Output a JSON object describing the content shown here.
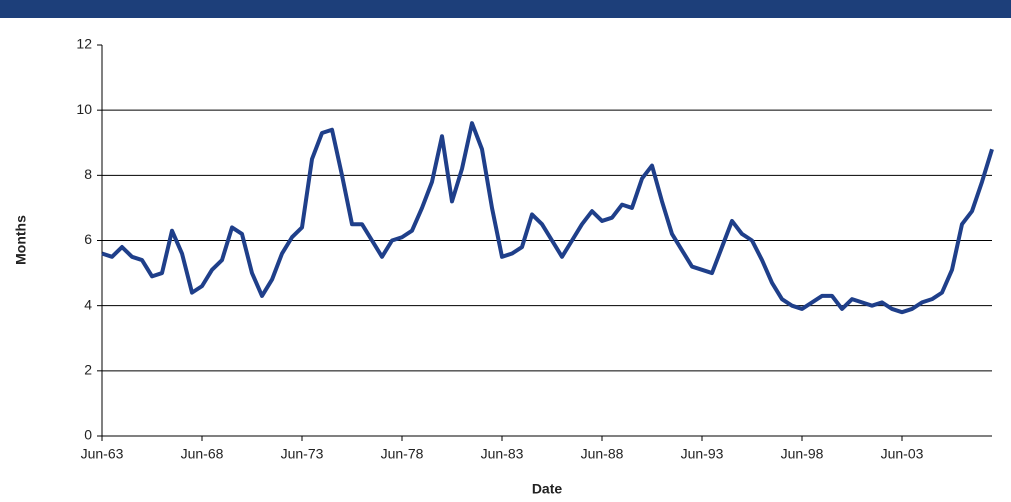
{
  "chart_data": {
    "type": "line",
    "x_label": "Date",
    "y_label": "Months",
    "categories": [
      "Jun-63",
      null,
      null,
      null,
      null,
      null,
      null,
      null,
      null,
      null,
      "Jun-68",
      null,
      null,
      null,
      null,
      null,
      null,
      null,
      null,
      null,
      "Jun-73",
      null,
      null,
      null,
      null,
      null,
      null,
      null,
      null,
      null,
      "Jun-78",
      null,
      null,
      null,
      null,
      null,
      null,
      null,
      null,
      null,
      "Jun-83",
      null,
      null,
      null,
      null,
      null,
      null,
      null,
      null,
      null,
      "Jun-88",
      null,
      null,
      null,
      null,
      null,
      null,
      null,
      null,
      null,
      "Jun-93",
      null,
      null,
      null,
      null,
      null,
      null,
      null,
      null,
      null,
      "Jun-98",
      null,
      null,
      null,
      null,
      null,
      null,
      null,
      null,
      null,
      "Jun-03",
      null,
      null,
      null,
      null,
      null,
      null,
      null,
      null,
      null
    ],
    "values": [
      5.6,
      5.5,
      5.8,
      5.5,
      5.4,
      4.9,
      5.0,
      6.3,
      5.6,
      4.4,
      4.6,
      5.1,
      5.4,
      6.4,
      6.2,
      5.0,
      4.3,
      4.8,
      5.6,
      6.1,
      6.4,
      8.5,
      9.3,
      9.4,
      8.0,
      6.5,
      6.5,
      6.0,
      5.5,
      6.0,
      6.1,
      6.3,
      7.0,
      7.8,
      9.2,
      7.2,
      8.2,
      9.6,
      8.8,
      7.0,
      5.5,
      5.6,
      5.8,
      6.8,
      6.5,
      6.0,
      5.5,
      6.0,
      6.5,
      6.9,
      6.6,
      6.7,
      7.1,
      7.0,
      7.9,
      8.3,
      7.2,
      6.2,
      5.7,
      5.2,
      5.1,
      5.0,
      5.8,
      6.6,
      6.2,
      6.0,
      5.4,
      4.7,
      4.2,
      4.0,
      3.9,
      4.1,
      4.3,
      4.3,
      3.9,
      4.2,
      4.1,
      4.0,
      4.1,
      3.9,
      3.8,
      3.9,
      4.1,
      4.2,
      4.4,
      5.1,
      6.5,
      6.9,
      7.8,
      8.8
    ],
    "color": "#1f3f8a",
    "ylim": [
      0,
      12
    ],
    "yticks": [
      0,
      2,
      4,
      6,
      8,
      10,
      12
    ],
    "grid": true
  }
}
